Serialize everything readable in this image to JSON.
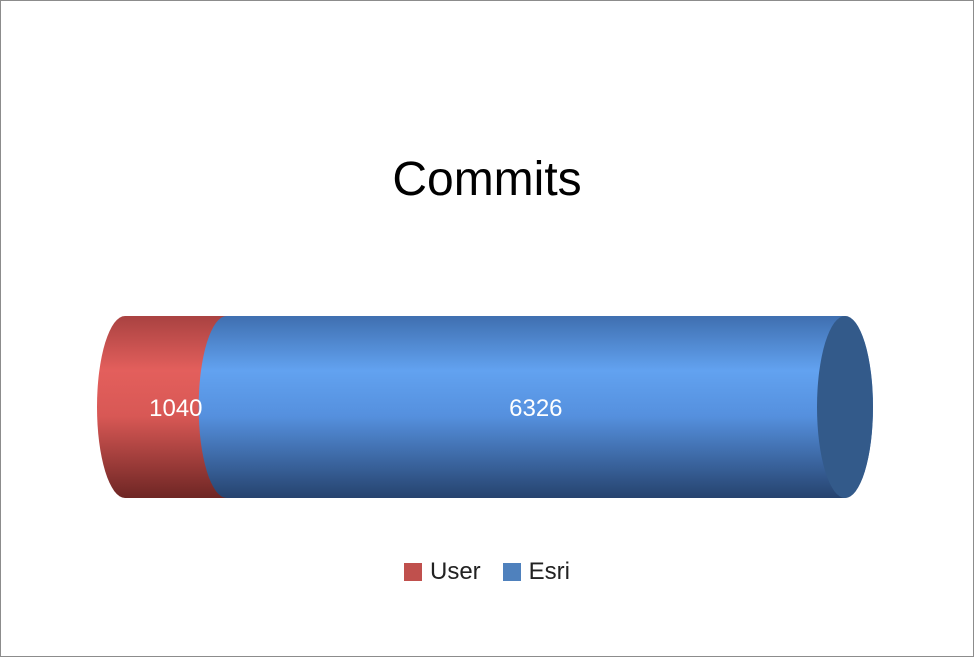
{
  "chart_data": {
    "type": "bar",
    "orientation": "horizontal",
    "stacked": true,
    "shape": "cylinder",
    "title": "Commits",
    "categories": [
      ""
    ],
    "series": [
      {
        "name": "User",
        "values": [
          1040
        ],
        "color": "#c0504d",
        "label": "1040"
      },
      {
        "name": "Esri",
        "values": [
          6326
        ],
        "color": "#4f81bd",
        "label": "6326"
      }
    ],
    "xlim": [
      0,
      7366
    ],
    "grid": false,
    "legend_position": "bottom"
  }
}
